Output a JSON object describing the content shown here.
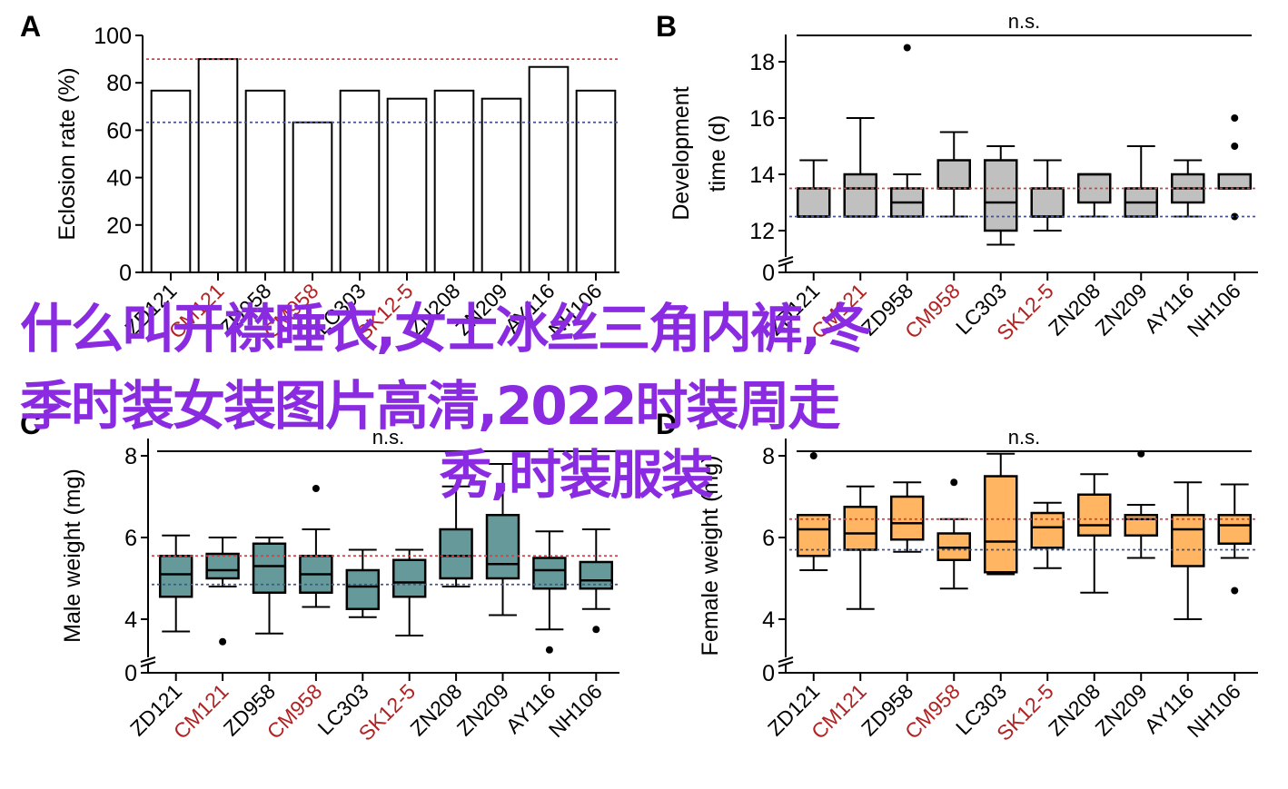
{
  "watermark": {
    "line1": "什么叫开襟睡衣,女士冰丝三角内裤,冬",
    "line2": "季时装女装图片高清,2022时装周走",
    "line3": "秀,时装服装",
    "color": "#8a2be2"
  },
  "colors": {
    "ref_red": "#e8383d",
    "ref_blue": "#3c55a0",
    "label_red": "#b22222",
    "label_black": "#000000",
    "box_gray": "#c0c0c0",
    "box_teal": "#669999",
    "box_orange": "#ffb562",
    "bar_fill": "#ffffff"
  },
  "chart_data": [
    {
      "panel": "A",
      "type": "bar",
      "title": "",
      "ylabel": "Eclosion rate (%)",
      "xlabel": "",
      "ylim": [
        0,
        100
      ],
      "yticks": [
        0,
        20,
        40,
        60,
        80,
        100
      ],
      "categories": [
        "ZD121",
        "CM121",
        "ZD958",
        "CM958",
        "LC303",
        "SK12-5",
        "ZN208",
        "ZN209",
        "AY116",
        "NH106"
      ],
      "category_colors": [
        "black",
        "red",
        "black",
        "red",
        "black",
        "red",
        "black",
        "black",
        "black",
        "black"
      ],
      "values": [
        76.7,
        90.0,
        76.7,
        63.3,
        76.7,
        73.3,
        76.7,
        73.3,
        86.7,
        76.7
      ],
      "ref_lines": [
        {
          "value": 90.0,
          "color": "red"
        },
        {
          "value": 63.3,
          "color": "blue"
        }
      ],
      "grid": false
    },
    {
      "panel": "B",
      "type": "box",
      "ylabel": "Development time (d)",
      "annotation": "n.s.",
      "axis_break": true,
      "ylim": [
        11,
        19
      ],
      "yticks": [
        0,
        12,
        14,
        16,
        18
      ],
      "categories": [
        "ZD121",
        "CM121",
        "ZD958",
        "CM958",
        "LC303",
        "SK12-5",
        "ZN208",
        "ZN209",
        "AY116",
        "NH106"
      ],
      "category_colors": [
        "black",
        "red",
        "black",
        "red",
        "black",
        "red",
        "black",
        "black",
        "black",
        "black"
      ],
      "boxes": [
        {
          "min": 12.5,
          "q1": 12.5,
          "median": 12.5,
          "q3": 13.5,
          "max": 14.5,
          "outliers": []
        },
        {
          "min": 12.5,
          "q1": 12.5,
          "median": 13.5,
          "q3": 14.0,
          "max": 16.0,
          "outliers": []
        },
        {
          "min": 12.5,
          "q1": 12.5,
          "median": 13.0,
          "q3": 13.5,
          "max": 14.0,
          "outliers": [
            18.5
          ]
        },
        {
          "min": 12.5,
          "q1": 13.5,
          "median": 13.5,
          "q3": 14.5,
          "max": 15.5,
          "outliers": []
        },
        {
          "min": 11.5,
          "q1": 12.0,
          "median": 13.0,
          "q3": 14.5,
          "max": 15.0,
          "outliers": []
        },
        {
          "min": 12.0,
          "q1": 12.5,
          "median": 12.5,
          "q3": 13.5,
          "max": 14.5,
          "outliers": []
        },
        {
          "min": 12.5,
          "q1": 13.0,
          "median": 14.0,
          "q3": 14.0,
          "max": 14.0,
          "outliers": []
        },
        {
          "min": 12.5,
          "q1": 12.5,
          "median": 13.0,
          "q3": 13.5,
          "max": 15.0,
          "outliers": []
        },
        {
          "min": 12.5,
          "q1": 13.0,
          "median": 13.5,
          "q3": 14.0,
          "max": 14.5,
          "outliers": []
        },
        {
          "min": 13.5,
          "q1": 13.5,
          "median": 13.5,
          "q3": 14.0,
          "max": 14.0,
          "outliers": [
            16.0,
            15.0,
            12.5
          ]
        }
      ],
      "ref_lines": [
        {
          "value": 13.5,
          "color": "red"
        },
        {
          "value": 12.5,
          "color": "blue"
        }
      ],
      "box_color": "gray"
    },
    {
      "panel": "C",
      "type": "box",
      "ylabel": "Male weight (mg)",
      "annotation": "n.s.",
      "axis_break": true,
      "ylim": [
        2.6,
        8.6
      ],
      "yticks": [
        0,
        4,
        6,
        8
      ],
      "categories": [
        "ZD121",
        "CM121",
        "ZD958",
        "CM958",
        "LC303",
        "SK12-5",
        "ZN208",
        "ZN209",
        "AY116",
        "NH106"
      ],
      "category_colors": [
        "black",
        "red",
        "black",
        "red",
        "black",
        "red",
        "black",
        "black",
        "black",
        "black"
      ],
      "boxes": [
        {
          "min": 3.7,
          "q1": 4.55,
          "median": 5.1,
          "q3": 5.55,
          "max": 6.05,
          "outliers": []
        },
        {
          "min": 4.8,
          "q1": 5.0,
          "median": 5.2,
          "q3": 5.6,
          "max": 6.0,
          "outliers": [
            3.45
          ]
        },
        {
          "min": 3.65,
          "q1": 4.65,
          "median": 5.3,
          "q3": 5.85,
          "max": 6.0,
          "outliers": []
        },
        {
          "min": 4.3,
          "q1": 4.65,
          "median": 5.1,
          "q3": 5.55,
          "max": 6.2,
          "outliers": [
            7.2
          ]
        },
        {
          "min": 4.05,
          "q1": 4.25,
          "median": 4.8,
          "q3": 5.2,
          "max": 5.7,
          "outliers": []
        },
        {
          "min": 3.6,
          "q1": 4.55,
          "median": 4.9,
          "q3": 5.45,
          "max": 5.7,
          "outliers": []
        },
        {
          "min": 4.8,
          "q1": 5.0,
          "median": 5.55,
          "q3": 6.2,
          "max": 7.25,
          "outliers": []
        },
        {
          "min": 4.1,
          "q1": 5.0,
          "median": 5.35,
          "q3": 6.55,
          "max": 7.8,
          "outliers": []
        },
        {
          "min": 3.75,
          "q1": 4.75,
          "median": 5.2,
          "q3": 5.5,
          "max": 6.15,
          "outliers": [
            3.25
          ]
        },
        {
          "min": 4.25,
          "q1": 4.75,
          "median": 4.95,
          "q3": 5.4,
          "max": 6.2,
          "outliers": [
            3.75
          ]
        }
      ],
      "ref_lines": [
        {
          "value": 5.55,
          "color": "red"
        },
        {
          "value": 4.85,
          "color": "blue"
        }
      ],
      "box_color": "teal"
    },
    {
      "panel": "D",
      "type": "box",
      "ylabel": "Female weight (mg)",
      "annotation": "n.s.",
      "axis_break": true,
      "ylim": [
        2.6,
        8.6
      ],
      "yticks": [
        0,
        4,
        6,
        8
      ],
      "categories": [
        "ZD121",
        "CM121",
        "ZD958",
        "CM958",
        "LC303",
        "SK12-5",
        "ZN208",
        "ZN209",
        "AY116",
        "NH106"
      ],
      "category_colors": [
        "black",
        "red",
        "black",
        "red",
        "black",
        "red",
        "black",
        "black",
        "black",
        "black"
      ],
      "boxes": [
        {
          "min": 5.2,
          "q1": 5.55,
          "median": 6.2,
          "q3": 6.55,
          "max": 6.55,
          "outliers": [
            8.0
          ]
        },
        {
          "min": 4.25,
          "q1": 5.7,
          "median": 6.1,
          "q3": 6.75,
          "max": 7.25,
          "outliers": []
        },
        {
          "min": 5.65,
          "q1": 5.95,
          "median": 6.35,
          "q3": 7.0,
          "max": 7.35,
          "outliers": []
        },
        {
          "min": 4.75,
          "q1": 5.45,
          "median": 5.75,
          "q3": 6.1,
          "max": 6.45,
          "outliers": [
            7.35
          ]
        },
        {
          "min": 5.1,
          "q1": 5.15,
          "median": 5.9,
          "q3": 7.5,
          "max": 8.05,
          "outliers": []
        },
        {
          "min": 5.25,
          "q1": 5.75,
          "median": 6.25,
          "q3": 6.6,
          "max": 6.85,
          "outliers": []
        },
        {
          "min": 4.65,
          "q1": 6.05,
          "median": 6.3,
          "q3": 7.05,
          "max": 7.55,
          "outliers": []
        },
        {
          "min": 5.5,
          "q1": 6.05,
          "median": 6.45,
          "q3": 6.55,
          "max": 6.8,
          "outliers": [
            8.05
          ]
        },
        {
          "min": 4.0,
          "q1": 5.3,
          "median": 6.2,
          "q3": 6.55,
          "max": 7.35,
          "outliers": []
        },
        {
          "min": 5.5,
          "q1": 5.85,
          "median": 6.3,
          "q3": 6.55,
          "max": 7.3,
          "outliers": [
            4.7
          ]
        }
      ],
      "ref_lines": [
        {
          "value": 6.45,
          "color": "red"
        },
        {
          "value": 5.7,
          "color": "blue"
        }
      ],
      "box_color": "orange"
    }
  ]
}
